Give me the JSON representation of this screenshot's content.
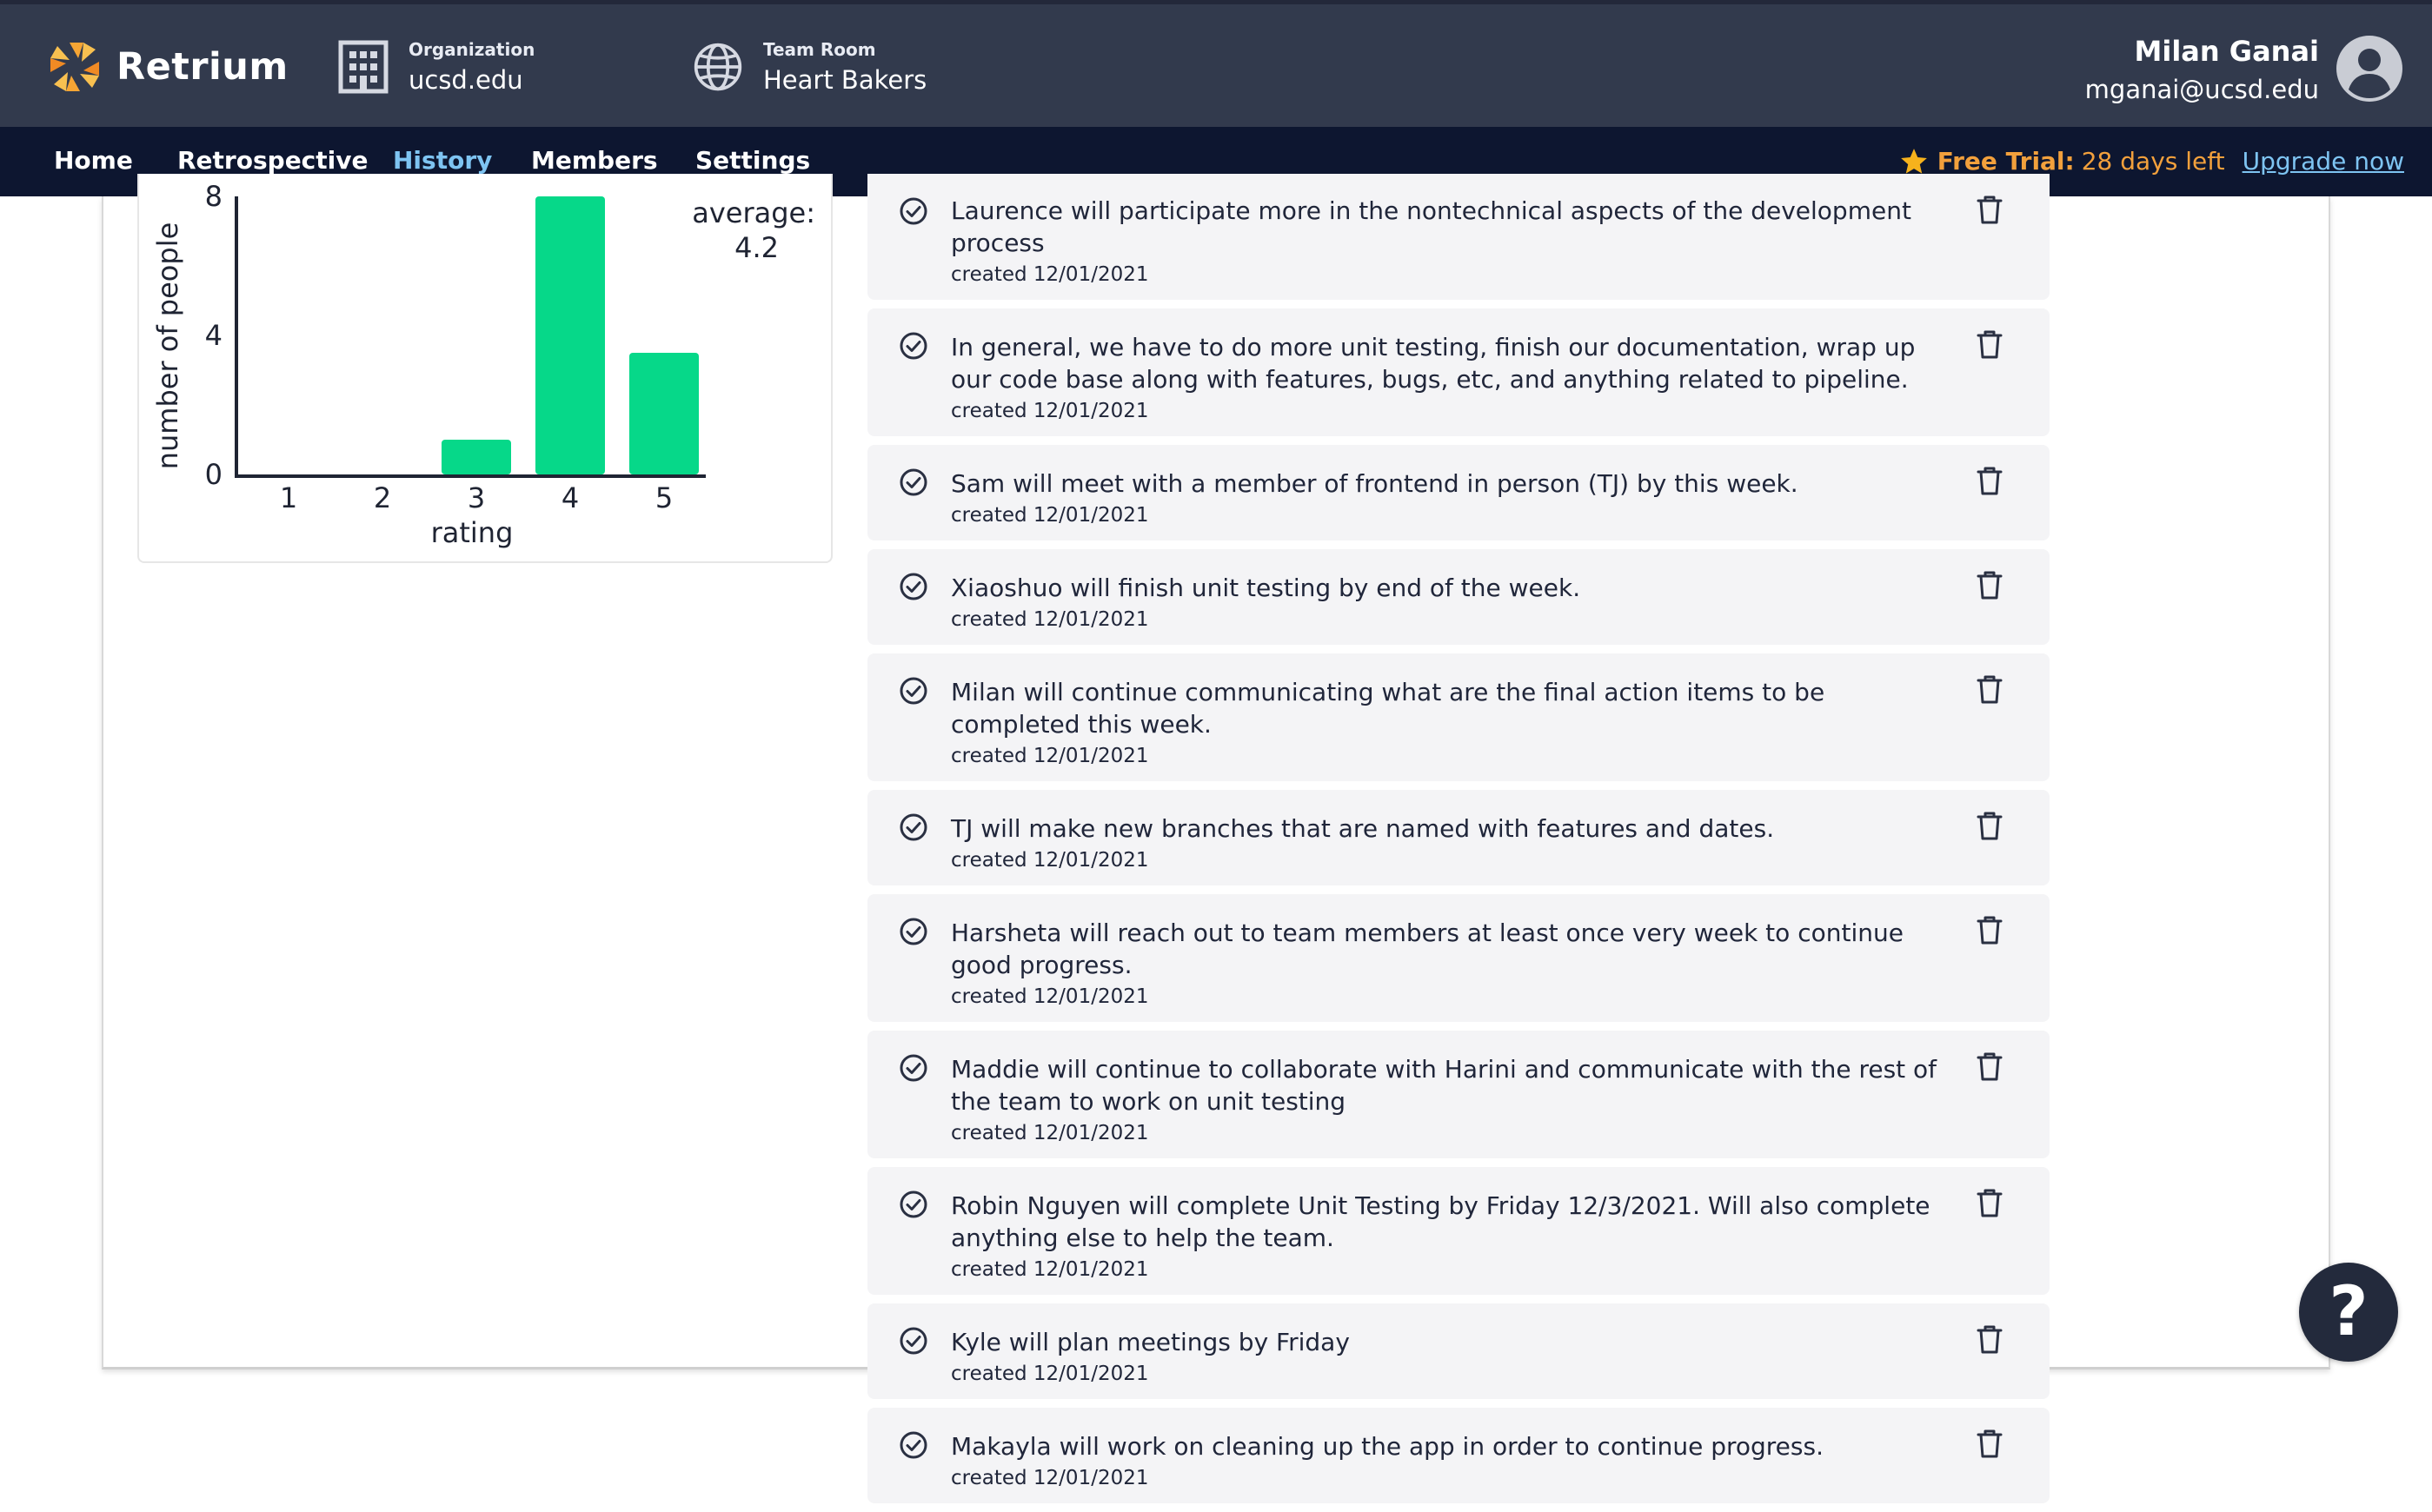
{
  "header": {
    "app_name": "Retrium",
    "organization": {
      "label": "Organization",
      "value": "ucsd.edu"
    },
    "team_room": {
      "label": "Team Room",
      "value": "Heart Bakers"
    },
    "user": {
      "name": "Milan Ganai",
      "email": "mganai@ucsd.edu"
    }
  },
  "nav": {
    "tabs": [
      {
        "label": "Home"
      },
      {
        "label": "Retrospective"
      },
      {
        "label": "History"
      },
      {
        "label": "Members"
      },
      {
        "label": "Settings"
      }
    ],
    "active_tab": "History",
    "trial": {
      "label": "Free Trial:",
      "days": "28 days left",
      "upgrade": "Upgrade now"
    }
  },
  "chart_data": {
    "type": "bar",
    "categories": [
      "1",
      "2",
      "3",
      "4",
      "5"
    ],
    "values": [
      0,
      0,
      1,
      8,
      3.5
    ],
    "ylim": [
      0,
      8
    ],
    "yticks": [
      "0",
      "4",
      "8"
    ],
    "xlabel": "rating",
    "ylabel": "number of people",
    "average_label": "average:",
    "average_value": "4.2",
    "bar_color": "#06d889"
  },
  "action_items": [
    {
      "text": "Laurence will participate more in the nontechnical aspects of the development process",
      "date": "created 12/01/2021"
    },
    {
      "text": "In general, we have to do more unit testing, finish our documentation, wrap up our code base along with features, bugs, etc, and anything related to pipeline.",
      "date": "created 12/01/2021"
    },
    {
      "text": "Sam will meet with a member of frontend in person (TJ)  by this week.",
      "date": "created 12/01/2021"
    },
    {
      "text": "Xiaoshuo will finish unit testing by end of the week.",
      "date": "created 12/01/2021"
    },
    {
      "text": "Milan will continue communicating what are the final action items to be completed this week.",
      "date": "created 12/01/2021"
    },
    {
      "text": "TJ will make new branches that are named with features and dates.",
      "date": "created 12/01/2021"
    },
    {
      "text": "Harsheta will reach out to team members at least once very week to continue good progress.",
      "date": "created 12/01/2021"
    },
    {
      "text": "Maddie will continue to collaborate with Harini and communicate with the rest of the team to work on unit testing",
      "date": "created 12/01/2021"
    },
    {
      "text": "Robin Nguyen will complete Unit Testing by Friday 12/3/2021. Will also complete anything else to help the team.",
      "date": "created 12/01/2021"
    },
    {
      "text": "Kyle will plan meetings by Friday",
      "date": "created 12/01/2021"
    },
    {
      "text": "Makayla will work on cleaning up the app in order to continue progress.",
      "date": "created 12/01/2021"
    }
  ],
  "help": {
    "label": "?"
  },
  "colors": {
    "header_bg": "#323a4d",
    "nav_bg": "#0d1630",
    "accent": "#2d87d3",
    "trial": "#f2a03c"
  }
}
